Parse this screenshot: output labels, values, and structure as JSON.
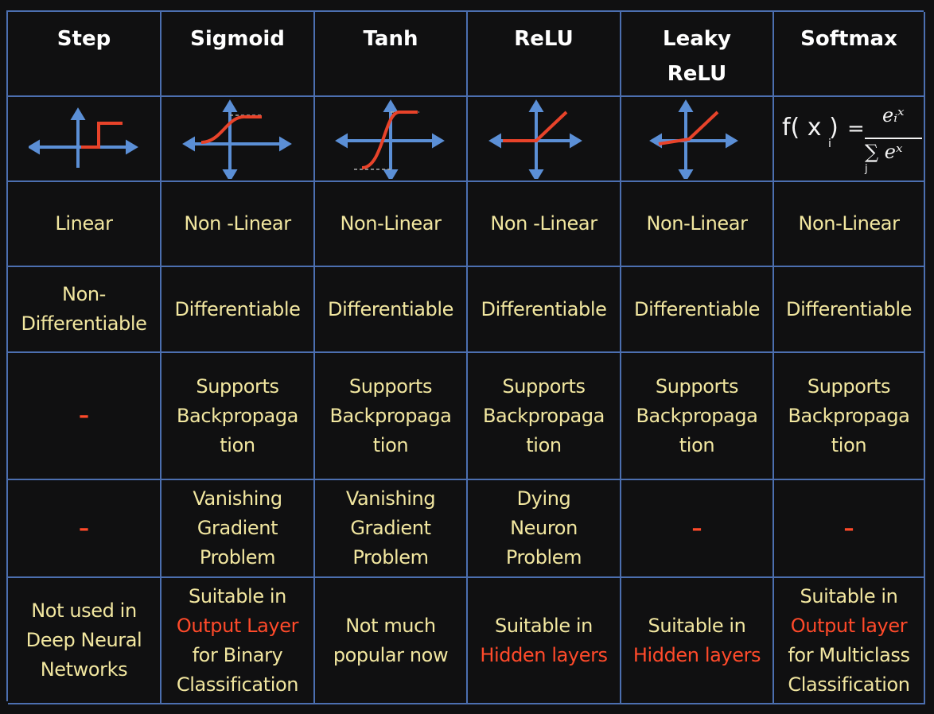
{
  "headers": [
    "Step",
    "Sigmoid",
    "Tanh",
    "ReLU",
    "Leaky\nReLU",
    "Softmax"
  ],
  "formula": {
    "lhs": "f( x )",
    "lhs_sub": "i",
    "eq": "=",
    "numerator": "eᵢˣ",
    "denominator": "∑ eˣ",
    "denominator_sub": "j"
  },
  "linearity": [
    "Linear",
    "Non -Linear",
    "Non-Linear",
    "Non -Linear",
    "Non-Linear",
    "Non-Linear"
  ],
  "differentiability": [
    "Non-\nDifferentiable",
    "Differentiable",
    "Differentiable",
    "Differentiable",
    "Differentiable",
    "Differentiable"
  ],
  "backprop": [
    "–",
    "Supports\nBackpropaga\ntion",
    "Supports\nBackpropaga\ntion",
    "Supports\nBackpropaga\ntion",
    "Supports\nBackpropaga\ntion",
    "Supports\nBackpropaga\ntion"
  ],
  "problems": [
    "–",
    "Vanishing\nGradient\nProblem",
    "Vanishing\nGradient\nProblem",
    "Dying\nNeuron\nProblem",
    "–",
    "–"
  ],
  "usage": [
    {
      "pre": "Not used in\nDeep Neural\nNetworks",
      "hl": "",
      "post": ""
    },
    {
      "pre": "Suitable in\n",
      "hl": "Output Layer",
      "post": "\nfor Binary\nClassification"
    },
    {
      "pre": "Not much\npopular now",
      "hl": "",
      "post": ""
    },
    {
      "pre": "Suitable in\n",
      "hl": "Hidden layers",
      "post": ""
    },
    {
      "pre": "Suitable in\n",
      "hl": "Hidden layers",
      "post": ""
    },
    {
      "pre": "Suitable in\n",
      "hl": "Output layer",
      "post": "\nfor Multiclass\nClassification"
    }
  ],
  "colors": {
    "background": "#101011",
    "grid": "#4c6fb0",
    "text": "#f2e7a0",
    "header": "#ffffff",
    "highlight": "#ff4a2a",
    "axis": "#5b8fd6",
    "curve": "#e8432a"
  },
  "graph_icons": [
    "step-graph-icon",
    "sigmoid-graph-icon",
    "tanh-graph-icon",
    "relu-graph-icon",
    "leaky-relu-graph-icon"
  ]
}
